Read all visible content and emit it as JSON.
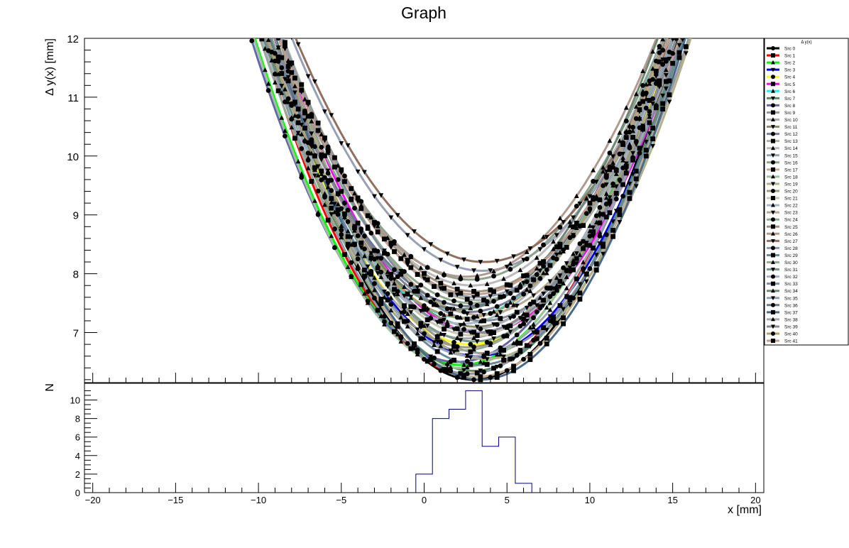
{
  "chart_data": [
    {
      "type": "line",
      "title": "Graph",
      "ylabel": "Δ y(x) [mm]",
      "xlabel": "",
      "xlim": [
        -20.5,
        20.5
      ],
      "ylim": [
        6.15,
        12
      ],
      "x_ticks": [],
      "y_ticks": [
        "7",
        "8",
        "9",
        "10",
        "11",
        "12"
      ],
      "grid": false,
      "legend_title": "Δ y(x)",
      "legend_placement": "right",
      "series": [
        {
          "name": "Src 0",
          "vertex": 3.0,
          "min": 6.2,
          "curvature": 0.0385,
          "color": "#000000",
          "marker": "circle"
        },
        {
          "name": "Src 1",
          "vertex": 2.6,
          "min": 6.3,
          "curvature": 0.037,
          "color": "#ff0000",
          "marker": "square"
        },
        {
          "name": "Src 2",
          "vertex": 2.2,
          "min": 6.45,
          "curvature": 0.036,
          "color": "#00ff00",
          "marker": "triangle"
        },
        {
          "name": "Src 3",
          "vertex": 3.2,
          "min": 6.6,
          "curvature": 0.035,
          "color": "#0000ff",
          "marker": "triangle-down"
        },
        {
          "name": "Src 4",
          "vertex": 2.8,
          "min": 6.8,
          "curvature": 0.0345,
          "color": "#ffff00",
          "marker": "circle"
        },
        {
          "name": "Src 5",
          "vertex": 3.4,
          "min": 7.0,
          "curvature": 0.034,
          "color": "#ff00ff",
          "marker": "square"
        },
        {
          "name": "Src 6",
          "vertex": 2.4,
          "min": 7.25,
          "curvature": 0.033,
          "color": "#00ffff",
          "marker": "triangle"
        },
        {
          "name": "Src 7",
          "vertex": 3.0,
          "min": 6.35,
          "curvature": 0.036,
          "color": "#5e8c5e",
          "marker": "triangle-down"
        },
        {
          "name": "Src 8",
          "vertex": 2.0,
          "min": 6.5,
          "curvature": 0.0355,
          "color": "#6666aa",
          "marker": "circle"
        },
        {
          "name": "Src 9",
          "vertex": 3.6,
          "min": 6.65,
          "curvature": 0.035,
          "color": "#999999",
          "marker": "square"
        },
        {
          "name": "Src 10",
          "vertex": 2.5,
          "min": 6.9,
          "curvature": 0.034,
          "color": "#aaaaaa",
          "marker": "triangle"
        },
        {
          "name": "Src 11",
          "vertex": 3.1,
          "min": 7.1,
          "curvature": 0.0335,
          "color": "#8e8e6e",
          "marker": "triangle-down"
        },
        {
          "name": "Src 12",
          "vertex": 2.7,
          "min": 7.35,
          "curvature": 0.0325,
          "color": "#7e7e9e",
          "marker": "circle"
        },
        {
          "name": "Src 13",
          "vertex": 3.3,
          "min": 7.55,
          "curvature": 0.032,
          "color": "#aab1a1",
          "marker": "square"
        },
        {
          "name": "Src 14",
          "vertex": 2.9,
          "min": 7.8,
          "curvature": 0.031,
          "color": "#bbbbbb",
          "marker": "triangle"
        },
        {
          "name": "Src 15",
          "vertex": 3.5,
          "min": 8.05,
          "curvature": 0.03,
          "color": "#9aa0b4",
          "marker": "triangle-down"
        },
        {
          "name": "Src 16",
          "vertex": 2.8,
          "min": 7.9,
          "curvature": 0.0305,
          "color": "#8da38d",
          "marker": "circle"
        },
        {
          "name": "Src 17",
          "vertex": 3.2,
          "min": 6.25,
          "curvature": 0.037,
          "color": "#c0b090",
          "marker": "square"
        },
        {
          "name": "Src 18",
          "vertex": 2.1,
          "min": 6.4,
          "curvature": 0.0365,
          "color": "#a0c0a0",
          "marker": "triangle"
        },
        {
          "name": "Src 19",
          "vertex": 3.7,
          "min": 6.55,
          "curvature": 0.0355,
          "color": "#b0b08a",
          "marker": "triangle-down"
        },
        {
          "name": "Src 20",
          "vertex": 2.6,
          "min": 6.75,
          "curvature": 0.0345,
          "color": "#9c9c7c",
          "marker": "circle"
        },
        {
          "name": "Src 21",
          "vertex": 3.0,
          "min": 6.95,
          "curvature": 0.034,
          "color": "#c8c8b0",
          "marker": "square"
        },
        {
          "name": "Src 22",
          "vertex": 2.3,
          "min": 7.15,
          "curvature": 0.033,
          "color": "#a8b8c8",
          "marker": "triangle"
        },
        {
          "name": "Src 23",
          "vertex": 3.4,
          "min": 7.3,
          "curvature": 0.0325,
          "color": "#b8a890",
          "marker": "triangle-down"
        },
        {
          "name": "Src 24",
          "vertex": 2.9,
          "min": 7.5,
          "curvature": 0.032,
          "color": "#90a890",
          "marker": "circle"
        },
        {
          "name": "Src 25",
          "vertex": 3.1,
          "min": 7.7,
          "curvature": 0.0315,
          "color": "#a09080",
          "marker": "square"
        },
        {
          "name": "Src 26",
          "vertex": 2.5,
          "min": 7.95,
          "curvature": 0.0305,
          "color": "#b09a90",
          "marker": "triangle"
        },
        {
          "name": "Src 27",
          "vertex": 3.6,
          "min": 8.2,
          "curvature": 0.0295,
          "color": "#907060",
          "marker": "triangle-down"
        },
        {
          "name": "Src 28",
          "vertex": 2.7,
          "min": 6.3,
          "curvature": 0.0375,
          "color": "#8a9aaa",
          "marker": "circle"
        },
        {
          "name": "Src 29",
          "vertex": 3.3,
          "min": 6.45,
          "curvature": 0.0365,
          "color": "#6a8a9a",
          "marker": "square"
        },
        {
          "name": "Src 30",
          "vertex": 2.4,
          "min": 6.7,
          "curvature": 0.035,
          "color": "#9aaa9a",
          "marker": "triangle"
        },
        {
          "name": "Src 31",
          "vertex": 3.0,
          "min": 6.85,
          "curvature": 0.0345,
          "color": "#7a9a8a",
          "marker": "triangle-down"
        },
        {
          "name": "Src 32",
          "vertex": 2.8,
          "min": 7.05,
          "curvature": 0.0335,
          "color": "#aab0c0",
          "marker": "circle"
        },
        {
          "name": "Src 33",
          "vertex": 3.5,
          "min": 7.2,
          "curvature": 0.033,
          "color": "#8090a0",
          "marker": "square"
        },
        {
          "name": "Src 34",
          "vertex": 2.2,
          "min": 7.4,
          "curvature": 0.0325,
          "color": "#708878",
          "marker": "triangle"
        },
        {
          "name": "Src 35",
          "vertex": 3.2,
          "min": 7.6,
          "curvature": 0.0315,
          "color": "#90a0b0",
          "marker": "triangle-down"
        },
        {
          "name": "Src 36",
          "vertex": 2.6,
          "min": 7.45,
          "curvature": 0.032,
          "color": "#6a7a8a",
          "marker": "circle"
        },
        {
          "name": "Src 37",
          "vertex": 3.4,
          "min": 6.2,
          "curvature": 0.038,
          "color": "#4a6a8a",
          "marker": "square"
        },
        {
          "name": "Src 38",
          "vertex": 2.9,
          "min": 6.6,
          "curvature": 0.0355,
          "color": "#a0a8b0",
          "marker": "triangle"
        },
        {
          "name": "Src 39",
          "vertex": 3.1,
          "min": 7.0,
          "curvature": 0.034,
          "color": "#8a8a9a",
          "marker": "triangle-down"
        },
        {
          "name": "Src 40",
          "vertex": 2.5,
          "min": 7.25,
          "curvature": 0.033,
          "color": "#b0a070",
          "marker": "circle"
        },
        {
          "name": "Src 41",
          "vertex": 3.0,
          "min": 7.65,
          "curvature": 0.0315,
          "color": "#c0a090",
          "marker": "square"
        }
      ]
    },
    {
      "type": "bar",
      "title": "",
      "ylabel": "N",
      "xlabel": "x [mm]",
      "xlim": [
        -20.5,
        20.5
      ],
      "ylim": [
        0,
        11.8
      ],
      "x_ticks": [
        "−20",
        "−15",
        "−10",
        "−5",
        "0",
        "5",
        "10",
        "15",
        "20"
      ],
      "y_ticks": [
        "0",
        "2",
        "4",
        "6",
        "8",
        "10"
      ],
      "line_color": "#000080",
      "bin_edges": [
        -0.5,
        0.5,
        1.5,
        2.5,
        3.5,
        4.5,
        5.5,
        6.5
      ],
      "values": [
        2,
        8,
        9,
        11,
        5,
        6,
        1
      ]
    }
  ]
}
